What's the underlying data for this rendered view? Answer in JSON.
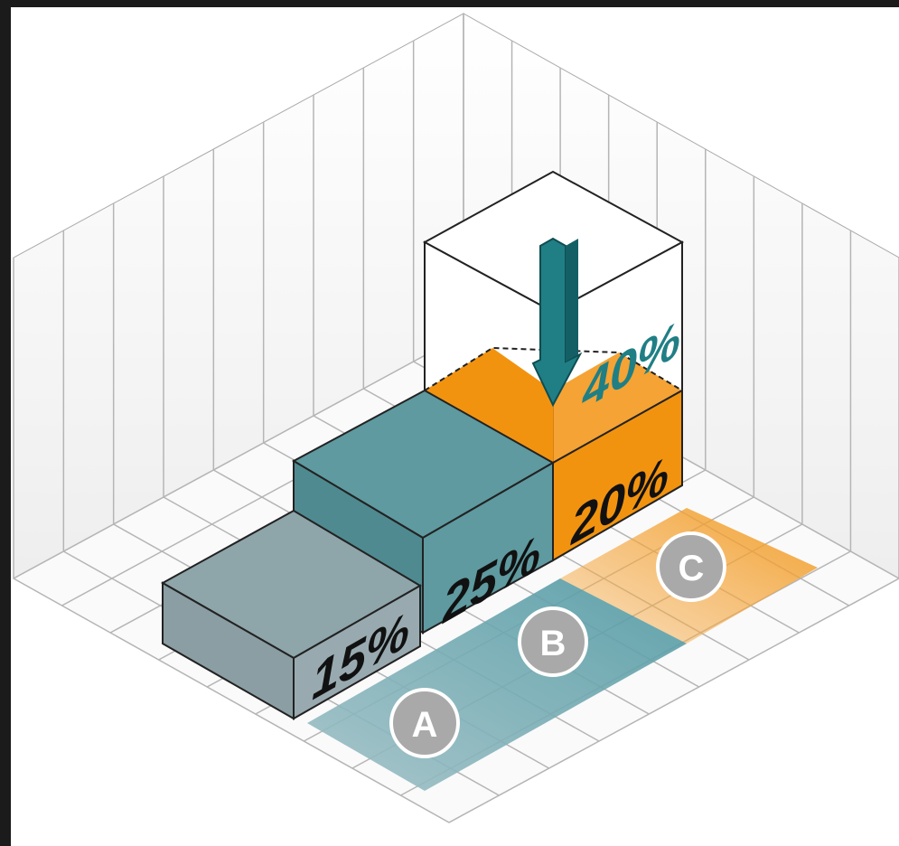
{
  "blocks": [
    {
      "label": "15%"
    },
    {
      "label": "25%"
    },
    {
      "label": "20%"
    },
    {
      "label": "40%"
    }
  ],
  "markers": [
    "A",
    "B",
    "C"
  ]
}
